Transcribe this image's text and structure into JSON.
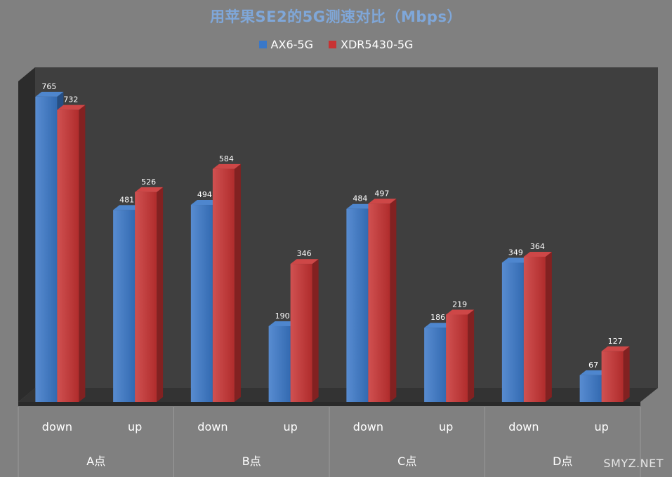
{
  "chart_data": {
    "type": "bar",
    "title": "用苹果SE2的5G测速对比（Mbps）",
    "categories": [
      "down",
      "up",
      "down",
      "up",
      "down",
      "up",
      "down",
      "up"
    ],
    "groups": [
      "A点",
      "B点",
      "C点",
      "D点"
    ],
    "series": [
      {
        "name": "AX6-5G",
        "color": "#3a78c9",
        "values": [
          765,
          481,
          494,
          190,
          484,
          186,
          349,
          67
        ]
      },
      {
        "name": "XDR5430-5G",
        "color": "#c83232",
        "values": [
          732,
          526,
          584,
          346,
          497,
          219,
          364,
          127
        ]
      }
    ],
    "ylim": [
      0,
      800
    ],
    "legend_position": "top",
    "grid": false,
    "data_labels": true
  },
  "watermark": "SMYZ.NET"
}
